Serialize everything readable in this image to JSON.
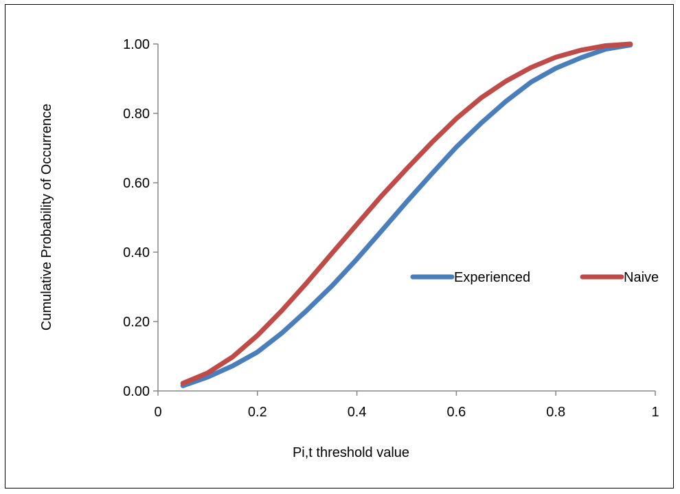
{
  "chart_data": {
    "type": "line",
    "title": "",
    "xlabel": "Pi,t threshold value",
    "ylabel": "Cumulative Probability of Occurrence",
    "xlim": [
      0,
      1
    ],
    "ylim": [
      0,
      1
    ],
    "x_ticks": [
      "0",
      "0.2",
      "0.4",
      "0.6",
      "0.8",
      "1"
    ],
    "y_ticks": [
      "0.00",
      "0.20",
      "0.40",
      "0.60",
      "0.80",
      "1.00"
    ],
    "grid": false,
    "legend_position": "right",
    "x": [
      0.05,
      0.1,
      0.15,
      0.2,
      0.25,
      0.3,
      0.35,
      0.4,
      0.45,
      0.5,
      0.55,
      0.6,
      0.65,
      0.7,
      0.75,
      0.8,
      0.85,
      0.9,
      0.95
    ],
    "series": [
      {
        "name": "Experienced",
        "color": "#4a7ebb",
        "values": [
          0.015,
          0.04,
          0.072,
          0.112,
          0.168,
          0.233,
          0.303,
          0.38,
          0.462,
          0.545,
          0.625,
          0.703,
          0.772,
          0.835,
          0.89,
          0.93,
          0.96,
          0.985,
          0.997
        ]
      },
      {
        "name": "Naive",
        "color": "#be4b48",
        "values": [
          0.022,
          0.052,
          0.098,
          0.16,
          0.233,
          0.313,
          0.397,
          0.48,
          0.563,
          0.64,
          0.715,
          0.785,
          0.845,
          0.893,
          0.932,
          0.962,
          0.982,
          0.995,
          1.0
        ]
      }
    ]
  }
}
